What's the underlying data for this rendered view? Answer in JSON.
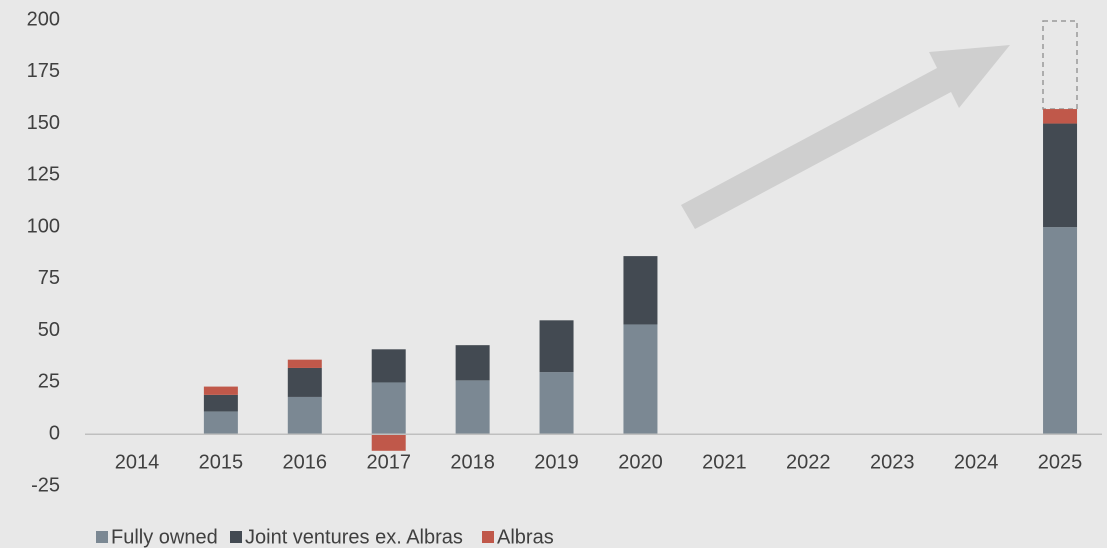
{
  "chart_data": {
    "type": "bar",
    "stacked": true,
    "categories": [
      "2014",
      "2015",
      "2016",
      "2017",
      "2018",
      "2019",
      "2020",
      "2021",
      "2022",
      "2023",
      "2024",
      "2025"
    ],
    "series": [
      {
        "name": "Fully owned",
        "color": "#7b8893",
        "values": [
          null,
          11,
          18,
          25,
          26,
          30,
          53,
          null,
          null,
          null,
          null,
          100
        ]
      },
      {
        "name": "Joint ventures ex. Albras",
        "color": "#434a52",
        "values": [
          null,
          8,
          14,
          16,
          17,
          25,
          33,
          null,
          null,
          null,
          null,
          50
        ]
      },
      {
        "name": "Albras",
        "color": "#c0584a",
        "values": [
          null,
          4,
          4,
          -8,
          null,
          null,
          null,
          null,
          null,
          null,
          null,
          7
        ]
      }
    ],
    "ylim": [
      -25,
      200
    ],
    "yticks": [
      -25,
      0,
      25,
      50,
      75,
      100,
      125,
      150,
      175,
      200
    ],
    "grid": false,
    "legend": "bottom-left"
  }
}
